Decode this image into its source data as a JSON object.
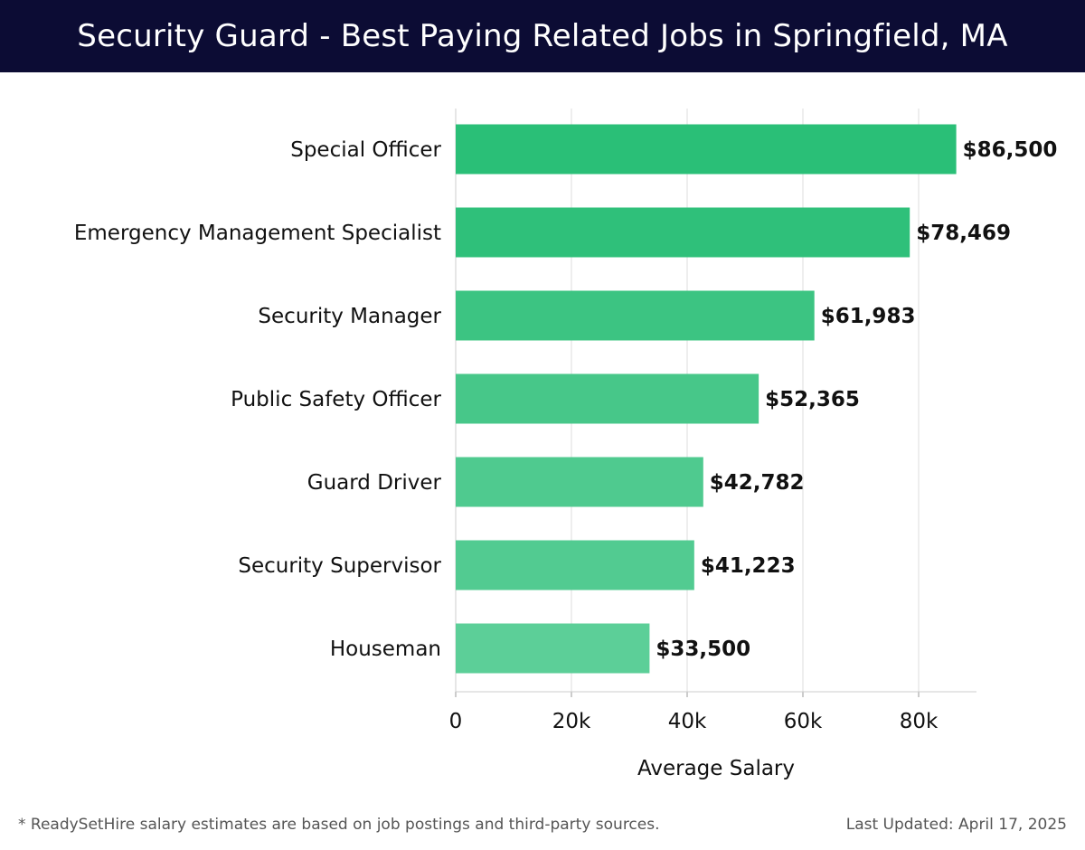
{
  "header": {
    "title": "Security Guard - Best Paying Related Jobs in Springfield, MA"
  },
  "chart_data": {
    "type": "bar",
    "orientation": "horizontal",
    "title": "Security Guard - Best Paying Related Jobs in Springfield, MA",
    "categories": [
      "Special Officer",
      "Emergency Management Specialist",
      "Security Manager",
      "Public Safety Officer",
      "Guard Driver",
      "Security Supervisor",
      "Houseman"
    ],
    "values": [
      86500,
      78469,
      61983,
      52365,
      42782,
      41223,
      33500
    ],
    "value_labels": [
      "$86,500",
      "$78,469",
      "$61,983",
      "$52,365",
      "$42,782",
      "$41,223",
      "$33,500"
    ],
    "bar_colors": [
      "#2abf77",
      "#2fc07a",
      "#3cc482",
      "#47c789",
      "#4fca8f",
      "#52cb91",
      "#5ccf98"
    ],
    "xlabel": "Average Salary",
    "ylabel": "",
    "xlim": [
      0,
      90000
    ],
    "xticks": [
      0,
      20000,
      40000,
      60000,
      80000
    ],
    "xtick_labels": [
      "0",
      "20k",
      "40k",
      "60k",
      "80k"
    ],
    "grid": true
  },
  "footer": {
    "note": "* ReadySetHire salary estimates are based on job postings and third-party sources.",
    "updated": "Last Updated: April 17, 2025"
  },
  "colors": {
    "header_bg": "#0c0c34",
    "grid": "#dddddd"
  }
}
